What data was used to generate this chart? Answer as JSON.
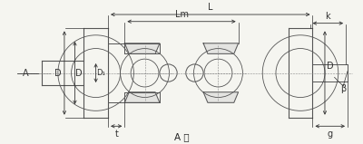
{
  "bg_color": "#f5f5f0",
  "line_color": "#555555",
  "dim_color": "#333333",
  "title": "A 向",
  "labels": {
    "L": "L",
    "Lm": "Lm",
    "A": "A",
    "D1": "D",
    "D2": "D",
    "D3": "D₁",
    "k": "k",
    "g": "g",
    "beta": "β",
    "t": "t"
  },
  "fig_width": 4.0,
  "fig_height": 1.59,
  "dpi": 100
}
